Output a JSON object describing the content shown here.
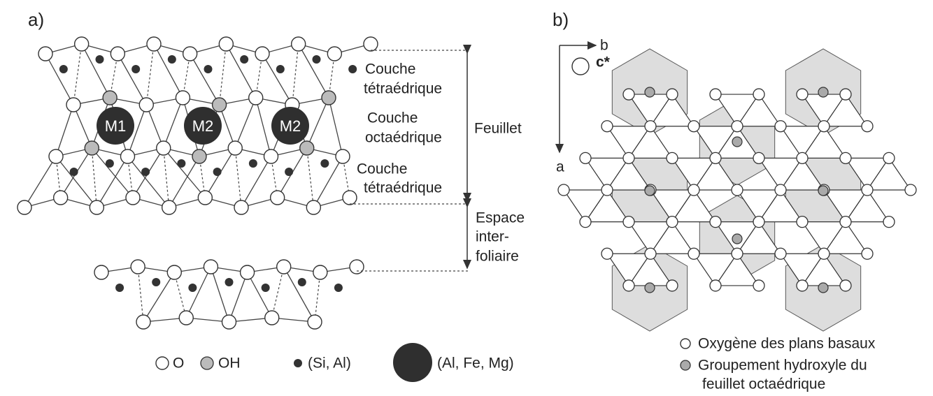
{
  "panel_a": {
    "label": "a)",
    "sites": [
      "M1",
      "M2",
      "M2"
    ],
    "layers": [
      {
        "lines": [
          "Couche",
          "tétraédrique"
        ]
      },
      {
        "lines": [
          "Couche",
          "octaédrique"
        ]
      },
      {
        "lines": [
          "Couche",
          "tétraédrique"
        ]
      }
    ],
    "feuillet": "Feuillet",
    "interlayer": [
      "Espace",
      "inter-",
      "foliaire"
    ],
    "legend": [
      "O",
      "OH",
      "(Si, Al)",
      "(Al, Fe, Mg)"
    ]
  },
  "panel_b": {
    "label": "b)",
    "axis_b": "b",
    "axis_a": "a",
    "axis_c": "c*",
    "legend": [
      {
        "lines": [
          "Oxygène des plans basaux"
        ]
      },
      {
        "lines": [
          "Groupement hydroxyle du",
          "feuillet octaédrique"
        ]
      }
    ]
  }
}
